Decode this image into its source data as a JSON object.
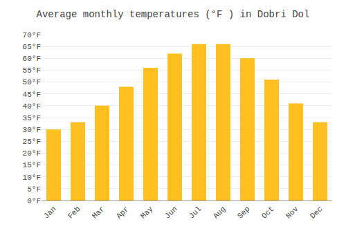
{
  "chart_data": {
    "type": "bar",
    "title": "Average monthly temperatures (°F ) in Dobri Dol",
    "categories": [
      "Jan",
      "Feb",
      "Mar",
      "Apr",
      "May",
      "Jun",
      "Jul",
      "Aug",
      "Sep",
      "Oct",
      "Nov",
      "Dec"
    ],
    "values": [
      30,
      33,
      40,
      48,
      56,
      62,
      66,
      66,
      60,
      51,
      41,
      33
    ],
    "color": "#FFC020",
    "ylim": [
      0,
      70
    ],
    "yticks": [
      {
        "value": 0,
        "label": "0°F"
      },
      {
        "value": 5,
        "label": "5°F"
      },
      {
        "value": 10,
        "label": "10°F"
      },
      {
        "value": 15,
        "label": "15°F"
      },
      {
        "value": 20,
        "label": "20°F"
      },
      {
        "value": 25,
        "label": "25°F"
      },
      {
        "value": 30,
        "label": "30°F"
      },
      {
        "value": 35,
        "label": "35°F"
      },
      {
        "value": 40,
        "label": "40°F"
      },
      {
        "value": 45,
        "label": "45°F"
      },
      {
        "value": 50,
        "label": "50°F"
      },
      {
        "value": 55,
        "label": "55°F"
      },
      {
        "value": 60,
        "label": "60°F"
      },
      {
        "value": 65,
        "label": "65°F"
      },
      {
        "value": 70,
        "label": "70°F"
      }
    ],
    "grid": true
  }
}
